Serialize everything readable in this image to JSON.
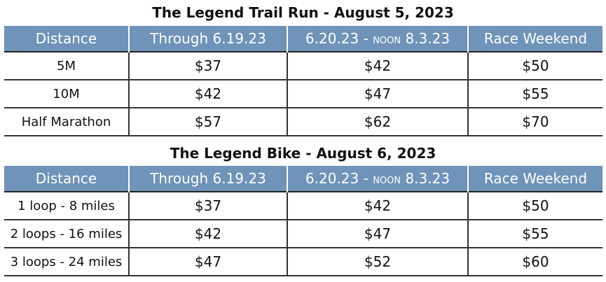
{
  "trail_run": {
    "title": "The Legend Trail Run - August 5, 2023",
    "headers": {
      "distance": "Distance",
      "through": "Through 6.19.23",
      "mid_a": "6.20.23 - ",
      "mid_noon": "NOON",
      "mid_b": " 8.3.23",
      "race": "Race Weekend"
    },
    "rows": [
      {
        "distance": "5M",
        "through": "$37",
        "mid": "$42",
        "race": "$50"
      },
      {
        "distance": "10M",
        "through": "$42",
        "mid": "$47",
        "race": "$55"
      },
      {
        "distance": "Half Marathon",
        "through": "$57",
        "mid": "$62",
        "race": "$70"
      }
    ]
  },
  "bike": {
    "title": "The Legend Bike - August 6, 2023",
    "headers": {
      "distance": "Distance",
      "through": "Through 6.19.23",
      "mid_a": "6.20.23 - ",
      "mid_noon": "NOON",
      "mid_b": " 8.3.23",
      "race": "Race Weekend"
    },
    "rows": [
      {
        "distance": "1 loop - 8 miles",
        "through": "$37",
        "mid": "$42",
        "race": "$50"
      },
      {
        "distance": "2 loops - 16 miles",
        "through": "$42",
        "mid": "$47",
        "race": "$55"
      },
      {
        "distance": "3 loops - 24 miles",
        "through": "$47",
        "mid": "$52",
        "race": "$60"
      }
    ]
  },
  "colors": {
    "header_bg": "#6f93b9",
    "header_text": "#ffffff",
    "grid_line": "#333333"
  }
}
